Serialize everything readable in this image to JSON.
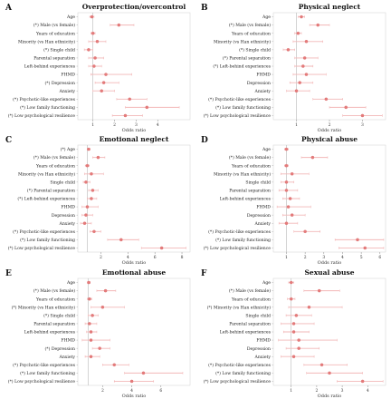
{
  "chart_data": [
    {
      "letter": "A",
      "title": "Overprotection/overcontrol",
      "type": "scatter",
      "xlabel": "Odds ratio",
      "xlim": [
        0.3,
        5.5
      ],
      "xticks": [
        "1",
        "2",
        "3",
        "4"
      ],
      "reference_line": 1,
      "categories": [
        "Age",
        "(*) Male (vs female)",
        "Years of education",
        "Minority (vs Han ethnicity)",
        "(*) Single child",
        "Parental separation",
        "Left-behind experiences",
        "FHMD",
        "(*) Depression",
        "Anxiety",
        "(*) Psychotic-like experiences",
        "(*) Low family functioning",
        "(*) Low psychological resilience"
      ],
      "estimate": [
        0.95,
        2.2,
        1.0,
        1.2,
        0.8,
        1.1,
        1.05,
        1.6,
        1.5,
        1.4,
        2.7,
        3.5,
        2.5
      ],
      "ci_low": [
        0.85,
        1.8,
        0.9,
        0.8,
        0.6,
        0.8,
        0.8,
        0.9,
        1.1,
        1.0,
        2.1,
        2.5,
        1.9
      ],
      "ci_high": [
        1.05,
        2.9,
        1.1,
        1.6,
        1.0,
        1.5,
        1.4,
        2.8,
        2.2,
        2.0,
        3.5,
        5.0,
        3.3
      ]
    },
    {
      "letter": "B",
      "title": "Physical neglect",
      "type": "scatter",
      "xlabel": "Odds ratio",
      "xlim": [
        0.3,
        3.7
      ],
      "xticks": [
        "1",
        "2",
        "3"
      ],
      "reference_line": 1,
      "categories": [
        "Age",
        "(*) Male (vs female)",
        "Years of education",
        "Minority (vs Han ethnicity)",
        "(*) Single child",
        "(*) Parental separation",
        "(*) Left-behind experiences",
        "FHMD",
        "Depression",
        "Anxiety",
        "(*) Psychotic-like experiences",
        "(*) Low family functioning",
        "(*) Low psychological resilience"
      ],
      "estimate": [
        1.15,
        1.65,
        1.05,
        1.3,
        0.75,
        1.25,
        1.2,
        1.3,
        1.1,
        1.0,
        1.9,
        2.5,
        3.0
      ],
      "ci_low": [
        1.05,
        1.4,
        0.95,
        0.9,
        0.6,
        0.95,
        0.95,
        0.9,
        0.8,
        0.7,
        1.5,
        2.0,
        2.4
      ],
      "ci_high": [
        1.25,
        2.0,
        1.15,
        1.8,
        0.95,
        1.65,
        1.5,
        1.9,
        1.5,
        1.4,
        2.4,
        3.1,
        3.6
      ]
    },
    {
      "letter": "C",
      "title": "Emotional neglect",
      "type": "scatter",
      "xlabel": "Odds ratio",
      "xlim": [
        0.3,
        8.6
      ],
      "xticks": [
        "2",
        "4",
        "6",
        "8"
      ],
      "reference_line": 1,
      "categories": [
        "(*) Age",
        "(*) Male (vs female)",
        "Years of education",
        "Minority (vs Han ethnicity)",
        "Single child",
        "(*) Parental separation",
        "(*) Left-behind experiences",
        "FHMD",
        "Depression",
        "Anxiety",
        "(*) Psychotic-like experiences",
        "(*) Low family functioning",
        "(*) Low psychological resilience"
      ],
      "estimate": [
        1.1,
        1.8,
        1.0,
        1.3,
        0.9,
        1.4,
        1.3,
        1.0,
        0.9,
        0.8,
        1.5,
        3.5,
        6.5
      ],
      "ci_low": [
        1.0,
        1.4,
        0.85,
        0.8,
        0.7,
        1.1,
        1.0,
        0.6,
        0.6,
        0.5,
        1.2,
        2.5,
        5.0
      ],
      "ci_high": [
        1.2,
        2.3,
        1.15,
        2.2,
        1.2,
        1.8,
        1.7,
        1.8,
        1.4,
        1.3,
        2.0,
        4.8,
        8.3
      ]
    },
    {
      "letter": "D",
      "title": "Physical abuse",
      "type": "scatter",
      "xlabel": "Odds ratio",
      "xlim": [
        0.3,
        6.3
      ],
      "xticks": [
        "1",
        "2",
        "3",
        "4",
        "5",
        "6"
      ],
      "reference_line": 1,
      "categories": [
        "Age",
        "(*) Male (vs female)",
        "Years of education",
        "Minority (vs Han ethnicity)",
        "Single child",
        "Parental separation",
        "Left-behind experiences",
        "FHMD",
        "Depression",
        "Anxiety",
        "(*) Psychotic-like experiences",
        "(*) Low family functioning",
        "(*) Low psychological resilience"
      ],
      "estimate": [
        1.0,
        2.4,
        1.0,
        1.3,
        1.0,
        1.0,
        1.2,
        1.1,
        1.3,
        1.0,
        2.0,
        4.8,
        5.2
      ],
      "ci_low": [
        0.9,
        1.8,
        0.9,
        0.7,
        0.7,
        0.6,
        0.8,
        0.5,
        0.8,
        0.6,
        1.4,
        3.6,
        3.8
      ],
      "ci_high": [
        1.1,
        3.2,
        1.1,
        2.2,
        1.4,
        1.6,
        1.7,
        2.3,
        2.0,
        1.6,
        2.8,
        6.2,
        6.2
      ]
    },
    {
      "letter": "E",
      "title": "Emotional abuse",
      "type": "scatter",
      "xlabel": "Odds ratio",
      "xlim": [
        0.3,
        8.0
      ],
      "xticks": [
        "2",
        "4",
        "6"
      ],
      "reference_line": 1,
      "categories": [
        "Age",
        "(*) Male (vs female)",
        "Years of education",
        "(*) Minority (vs Han ethnicity)",
        "(*) Single child",
        "Parental separation",
        "Left-behind experiences",
        "FHMD",
        "(*) Depression",
        "Anxiety",
        "(*) Psychotic-like experiences",
        "(*) Low family functioning",
        "(*) Low psychological resilience"
      ],
      "estimate": [
        1.05,
        2.2,
        1.1,
        2.0,
        1.3,
        1.1,
        1.2,
        1.2,
        1.8,
        1.2,
        2.8,
        4.8,
        4.0
      ],
      "ci_low": [
        0.95,
        1.6,
        0.95,
        1.2,
        1.0,
        0.8,
        0.9,
        0.6,
        1.3,
        0.8,
        2.0,
        3.5,
        2.8
      ],
      "ci_high": [
        1.15,
        2.9,
        1.25,
        3.5,
        1.7,
        1.6,
        1.6,
        2.5,
        2.5,
        1.8,
        3.8,
        7.5,
        5.5
      ]
    },
    {
      "letter": "F",
      "title": "Sexual abuse",
      "type": "scatter",
      "xlabel": "Odds ratio",
      "xlim": [
        0.3,
        4.7
      ],
      "xticks": [
        "1",
        "2",
        "3",
        "4"
      ],
      "reference_line": 1,
      "categories": [
        "Age",
        "(*) Male (vs female)",
        "Years of education",
        "(*) Minority (vs Han ethnicity)",
        "Single child",
        "Parental separation",
        "Left-behind experiences",
        "FHMD",
        "Depression",
        "Anxiety",
        "(*) Psychotic-like experiences",
        "(*) Low family functioning",
        "(*) Low psychological resilience"
      ],
      "estimate": [
        1.0,
        2.1,
        1.0,
        1.7,
        1.2,
        1.1,
        1.1,
        1.3,
        1.3,
        1.1,
        2.2,
        2.5,
        3.8
      ],
      "ci_low": [
        0.9,
        1.5,
        0.85,
        0.9,
        0.8,
        0.6,
        0.7,
        0.5,
        0.8,
        0.6,
        1.5,
        1.6,
        2.8
      ],
      "ci_high": [
        1.1,
        2.9,
        1.15,
        3.0,
        1.8,
        1.9,
        1.7,
        2.8,
        2.1,
        1.9,
        3.2,
        3.8,
        4.6
      ]
    }
  ]
}
